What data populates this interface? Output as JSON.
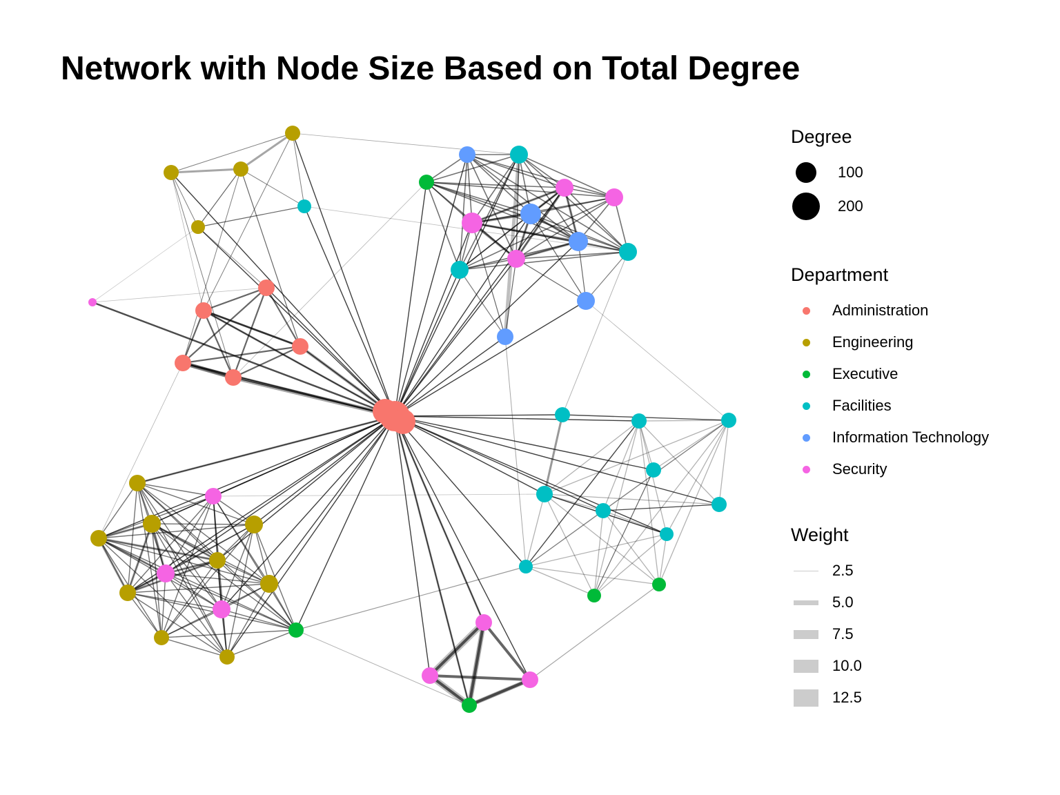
{
  "title": "Network with Node Size Based on Total Degree",
  "legend": {
    "degree": {
      "title": "Degree",
      "items": [
        {
          "label": "100",
          "value": 100
        },
        {
          "label": "200",
          "value": 200
        }
      ]
    },
    "department": {
      "title": "Department",
      "items": [
        {
          "label": "Administration",
          "color": "#F8766D"
        },
        {
          "label": "Engineering",
          "color": "#B79F00"
        },
        {
          "label": "Executive",
          "color": "#00BA38"
        },
        {
          "label": "Facilities",
          "color": "#00BFC4"
        },
        {
          "label": "Information Technology",
          "color": "#619CFF"
        },
        {
          "label": "Security",
          "color": "#F564E3"
        }
      ]
    },
    "weight": {
      "title": "Weight",
      "items": [
        {
          "label": "2.5",
          "value": 2.5
        },
        {
          "label": "5.0",
          "value": 5.0
        },
        {
          "label": "7.5",
          "value": 7.5
        },
        {
          "label": "10.0",
          "value": 10.0
        },
        {
          "label": "12.5",
          "value": 12.5
        }
      ]
    }
  }
}
